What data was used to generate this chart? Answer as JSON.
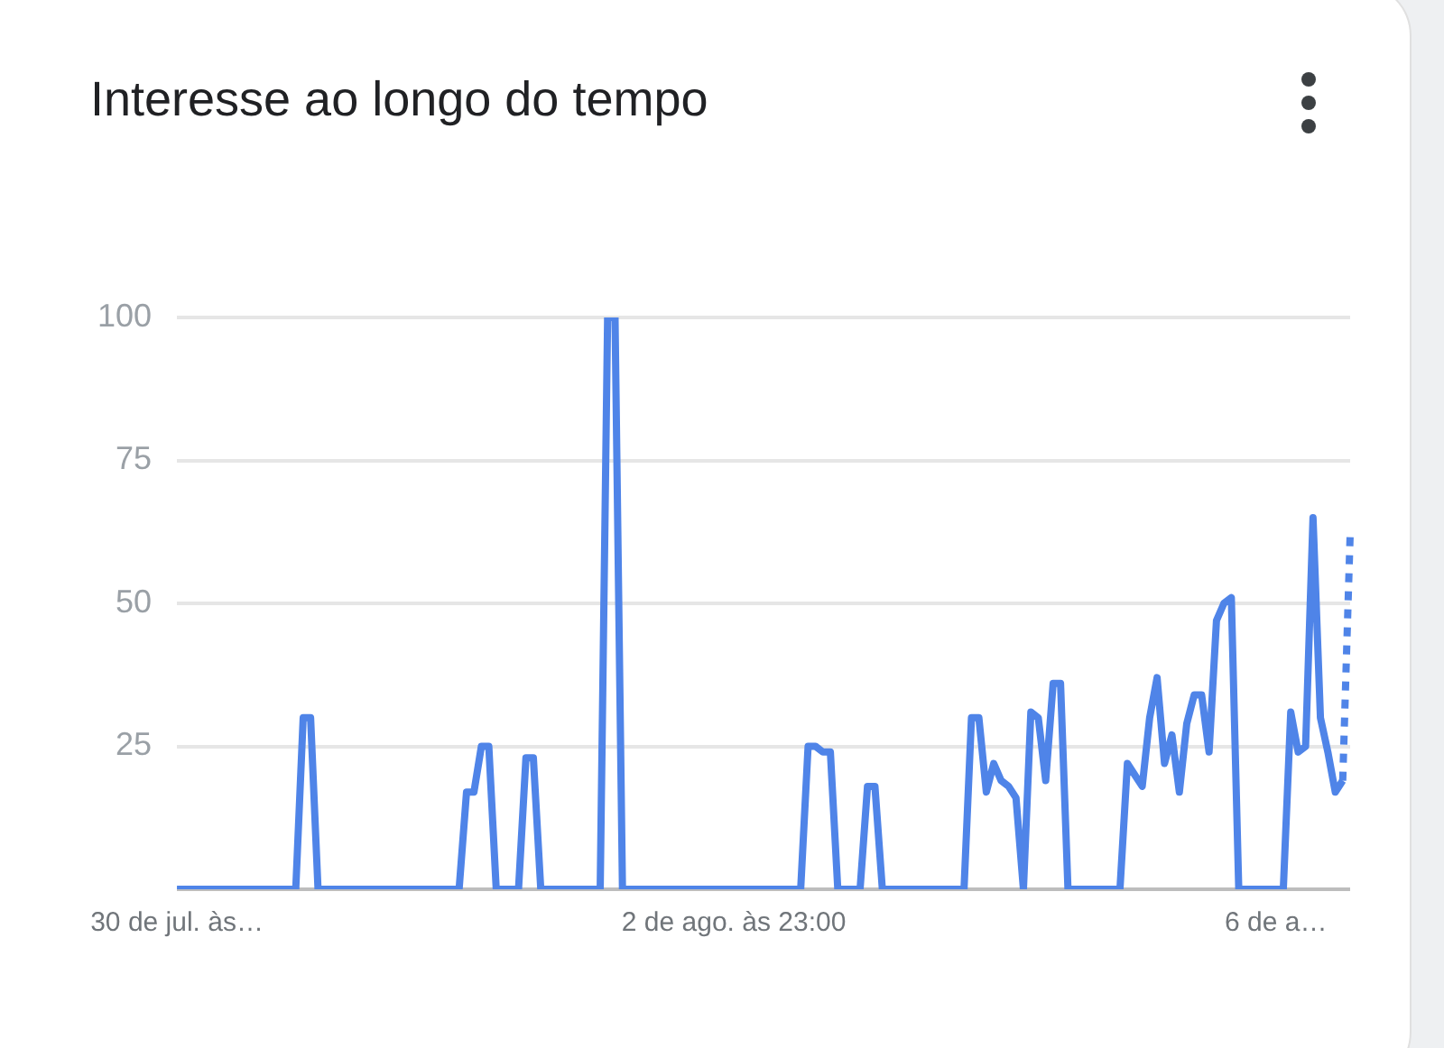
{
  "chart_data": {
    "type": "line",
    "title": "Interesse ao longo do tempo",
    "categories": [
      "30 de jul. às…",
      null,
      null,
      null,
      null,
      null,
      null,
      null,
      null,
      null,
      null,
      null,
      null,
      null,
      null,
      null,
      null,
      null,
      null,
      null,
      null,
      null,
      null,
      null,
      null,
      null,
      null,
      null,
      null,
      null,
      null,
      null,
      null,
      null,
      null,
      null,
      null,
      null,
      null,
      null,
      null,
      null,
      null,
      null,
      null,
      null,
      null,
      null,
      null,
      null,
      null,
      null,
      null,
      null,
      null,
      null,
      null,
      null,
      null,
      null,
      null,
      null,
      null,
      null,
      null,
      null,
      null,
      null,
      null,
      null,
      null,
      null,
      null,
      null,
      null,
      "2 de ago. às 23:00",
      null,
      null,
      null,
      null,
      null,
      null,
      null,
      null,
      null,
      null,
      null,
      null,
      null,
      null,
      null,
      null,
      null,
      null,
      null,
      null,
      null,
      null,
      null,
      null,
      null,
      null,
      null,
      null,
      null,
      null,
      null,
      null,
      null,
      null,
      null,
      null,
      null,
      null,
      null,
      null,
      null,
      null,
      null,
      null,
      null,
      null,
      null,
      null,
      null,
      null,
      null,
      null,
      null,
      null,
      null,
      null,
      null,
      null,
      null,
      null,
      null,
      null,
      null,
      null,
      null,
      null,
      null,
      null,
      null,
      null,
      null,
      null,
      "6 de a…",
      null,
      null,
      null,
      null,
      null,
      null,
      null,
      null,
      null,
      null
    ],
    "series": [
      {
        "color": "#4f84e8",
        "line_style": "solid",
        "values": [
          0,
          0,
          0,
          0,
          0,
          0,
          0,
          0,
          0,
          0,
          0,
          0,
          0,
          0,
          0,
          0,
          0,
          30,
          30,
          0,
          0,
          0,
          0,
          0,
          0,
          0,
          0,
          0,
          0,
          0,
          0,
          0,
          0,
          0,
          0,
          0,
          0,
          0,
          0,
          17,
          17,
          25,
          25,
          0,
          0,
          0,
          0,
          23,
          23,
          0,
          0,
          0,
          0,
          0,
          0,
          0,
          0,
          0,
          100,
          100,
          0,
          0,
          0,
          0,
          0,
          0,
          0,
          0,
          0,
          0,
          0,
          0,
          0,
          0,
          0,
          0,
          0,
          0,
          0,
          0,
          0,
          0,
          0,
          0,
          0,
          25,
          25,
          24,
          24,
          0,
          0,
          0,
          0,
          18,
          18,
          0,
          0,
          0,
          0,
          0,
          0,
          0,
          0,
          0,
          0,
          0,
          0,
          30,
          30,
          17,
          22,
          19,
          18,
          16,
          0,
          31,
          30,
          19,
          36,
          36,
          0,
          0,
          0,
          0,
          0,
          0,
          0,
          0,
          22,
          20,
          18,
          30,
          37,
          22,
          27,
          17,
          29,
          34,
          34,
          24,
          47,
          50,
          51,
          0,
          0,
          0,
          0,
          0,
          0,
          0,
          31,
          24,
          25,
          65,
          30,
          24,
          17,
          19,
          null
        ]
      },
      {
        "color": "#4f84e8",
        "line_style": "dotted",
        "values": [
          null,
          null,
          null,
          null,
          null,
          null,
          null,
          null,
          null,
          null,
          null,
          null,
          null,
          null,
          null,
          null,
          null,
          null,
          null,
          null,
          null,
          null,
          null,
          null,
          null,
          null,
          null,
          null,
          null,
          null,
          null,
          null,
          null,
          null,
          null,
          null,
          null,
          null,
          null,
          null,
          null,
          null,
          null,
          null,
          null,
          null,
          null,
          null,
          null,
          null,
          null,
          null,
          null,
          null,
          null,
          null,
          null,
          null,
          null,
          null,
          null,
          null,
          null,
          null,
          null,
          null,
          null,
          null,
          null,
          null,
          null,
          null,
          null,
          null,
          null,
          null,
          null,
          null,
          null,
          null,
          null,
          null,
          null,
          null,
          null,
          null,
          null,
          null,
          null,
          null,
          null,
          null,
          null,
          null,
          null,
          null,
          null,
          null,
          null,
          null,
          null,
          null,
          null,
          null,
          null,
          null,
          null,
          null,
          null,
          null,
          null,
          null,
          null,
          null,
          null,
          null,
          null,
          null,
          null,
          null,
          null,
          null,
          null,
          null,
          null,
          null,
          null,
          null,
          null,
          null,
          null,
          null,
          null,
          null,
          null,
          null,
          null,
          null,
          null,
          null,
          null,
          null,
          null,
          null,
          null,
          null,
          null,
          null,
          null,
          null,
          null,
          null,
          null,
          null,
          null,
          null,
          null,
          19,
          62
        ]
      }
    ],
    "ylim": [
      0,
      100
    ],
    "yticks": [
      {
        "value": 0,
        "label": null
      },
      25,
      50,
      75,
      100
    ],
    "grid": "y",
    "marker": "none",
    "legend": false
  }
}
